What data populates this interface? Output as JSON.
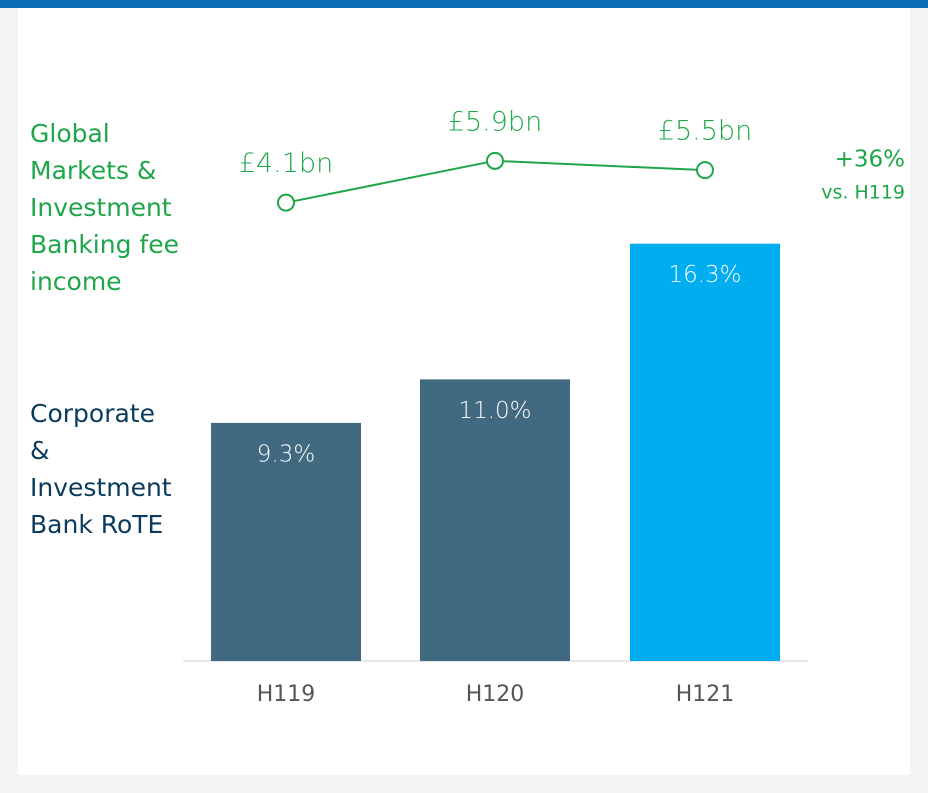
{
  "chart_data": {
    "type": "combo",
    "categories": [
      "H119",
      "H120",
      "H121"
    ],
    "ylim": [
      0,
      20
    ],
    "y2lim": [
      0,
      8
    ],
    "series": [
      {
        "name": "Corporate & Investment Bank RoTE",
        "type": "bar",
        "values": [
          9.3,
          11.0,
          16.3
        ],
        "value_labels": [
          "9.3%",
          "11.0%",
          "16.3%"
        ],
        "colors": [
          "#41697f",
          "#41697f",
          "#00aeef"
        ]
      },
      {
        "name": "Global Markets & Investment Banking fee income",
        "type": "line",
        "axis": "y2",
        "values": [
          4.1,
          5.9,
          5.5
        ],
        "value_labels": [
          "£4.1bn",
          "£5.9bn",
          "£5.5bn"
        ],
        "color": "#1fa64a"
      }
    ],
    "annotations": [
      "+36%",
      "vs. H119"
    ]
  }
}
